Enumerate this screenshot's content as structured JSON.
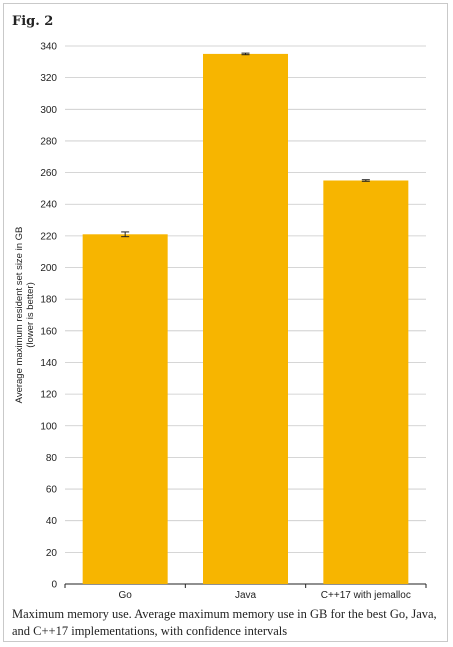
{
  "figure": {
    "label": "Fig. 2",
    "caption": "Maximum memory use. Average maximum memory use in GB for the best Go, Java, and C++17 implementations, with confidence intervals"
  },
  "chart_data": {
    "type": "bar",
    "categories": [
      "Go",
      "Java",
      "C++17 with jemalloc"
    ],
    "values": [
      221,
      335,
      255
    ],
    "error": [
      1.5,
      0.5,
      0.5
    ],
    "ylabel": [
      "Average maximum resident set size in GB",
      "(lower is better)"
    ],
    "ylim": [
      0,
      340
    ],
    "ytick_step": 20,
    "grid": true,
    "bar_color": "#F7B500",
    "grid_color": "#c8c8c8"
  }
}
